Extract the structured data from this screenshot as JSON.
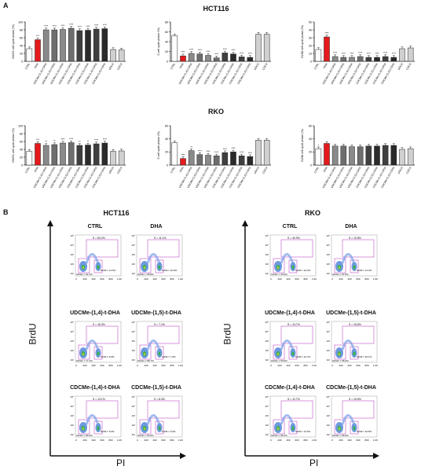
{
  "panels": {
    "a_letter": "A",
    "b_letter": "B",
    "cell_lines": [
      "HCT116",
      "RKO"
    ]
  },
  "colors": {
    "ctrl": "#ffffff",
    "dha": "#e41a1c",
    "udcme14": "#8a8a8a",
    "udcme15": "#6e6e6e",
    "cdcme14": "#3f3f3f",
    "cdcme15": "#2a2a2a",
    "udca": "#d0d0d0",
    "cdca": "#d0d0d0",
    "gate": "#c04fc8"
  },
  "categories": [
    "CTRL",
    "DHA",
    "UDCMe-(1,4)-t-DHA",
    "UDCMe-(1,5)-t-DHA",
    "UDCMe-(1,4)-t-DHA",
    "UDCMe-(1,5)-t-DHA",
    "CDCMe-(1,4)-t-DHA",
    "CDCMe-(1,5)-t-DHA",
    "CDCMe-(1,4)-t-DHA",
    "CDCMe-(1,5)-t-DHA",
    "UDCA",
    "CDCA"
  ],
  "chart_data": [
    {
      "type": "bar",
      "cell_line": "HCT116",
      "ylabel": "G0/G1 cell cycle phase (%)",
      "ylim": [
        0,
        100
      ],
      "yticks": [
        0,
        20,
        40,
        60,
        80,
        100
      ],
      "values": [
        32,
        55,
        80,
        80,
        81,
        84,
        78,
        79,
        82,
        83,
        30,
        29
      ],
      "sig": [
        "",
        "***",
        "****",
        "****",
        "****",
        "****",
        "****",
        "****",
        "****",
        "****",
        "",
        ""
      ]
    },
    {
      "type": "bar",
      "cell_line": "HCT116",
      "ylabel": "S cell cycle phase (%)",
      "ylim": [
        0,
        80
      ],
      "yticks": [
        0,
        20,
        40,
        60,
        80
      ],
      "values": [
        52,
        11,
        16,
        15,
        12,
        7,
        17,
        15,
        9,
        8,
        55,
        55
      ],
      "sig": [
        "",
        "****",
        "****",
        "****",
        "****",
        "****",
        "****",
        "****",
        "****",
        "****",
        "",
        ""
      ]
    },
    {
      "type": "bar",
      "cell_line": "HCT116",
      "ylabel": "G2/M cell cycle phase (%)",
      "ylim": [
        0,
        50
      ],
      "yticks": [
        0,
        10,
        20,
        30,
        40,
        50
      ],
      "values": [
        15,
        31,
        6,
        5,
        5,
        6,
        5,
        5,
        6,
        5,
        16,
        17
      ],
      "sig": [
        "",
        "****",
        "****",
        "****",
        "****",
        "****",
        "****",
        "****",
        "****",
        "****",
        "",
        ""
      ]
    },
    {
      "type": "bar",
      "cell_line": "RKO",
      "ylabel": "G0/G1 cell cycle phase (%)",
      "ylim": [
        0,
        100
      ],
      "yticks": [
        0,
        20,
        40,
        60,
        80,
        100
      ],
      "values": [
        35,
        55,
        50,
        52,
        56,
        57,
        50,
        51,
        54,
        56,
        35,
        36
      ],
      "sig": [
        "",
        "***",
        "**",
        "**",
        "****",
        "****",
        "**",
        "**",
        "****",
        "****",
        "",
        ""
      ]
    },
    {
      "type": "bar",
      "cell_line": "RKO",
      "ylabel": "S cell cycle phase (%)",
      "ylim": [
        0,
        60
      ],
      "yticks": [
        0,
        20,
        40,
        60
      ],
      "values": [
        34,
        10,
        22,
        16,
        15,
        14,
        19,
        20,
        14,
        13,
        38,
        38
      ],
      "sig": [
        "",
        "****",
        "**",
        "****",
        "****",
        "****",
        "****",
        "****",
        "****",
        "****",
        "",
        ""
      ]
    },
    {
      "type": "bar",
      "cell_line": "RKO",
      "ylabel": "G2/M cell cycle phase (%)",
      "ylim": [
        0,
        60
      ],
      "yticks": [
        0,
        20,
        40,
        60
      ],
      "values": [
        25,
        33,
        29,
        29,
        28,
        28,
        29,
        29,
        30,
        30,
        24,
        25
      ],
      "sig": [
        "*",
        "",
        "",
        "",
        "",
        "",
        "",
        "",
        "",
        "",
        "",
        ""
      ]
    }
  ],
  "facs": {
    "y_axis_label": "BrdU",
    "x_axis_label": "PI",
    "hct116": [
      {
        "title": "CTRL",
        "s": "S = 53.2%",
        "g0": "G0/G1 = 32.1%",
        "g2": "G2/M = 14.6%"
      },
      {
        "title": "DHA",
        "s": "S = 11.1%",
        "g0": "G0/G1 = 55.8%",
        "g2": "G2/M = 32.0%"
      },
      {
        "title": "UDCMe-(1,4)-t-DHA",
        "s": "S = 16.3%",
        "g0": "G0/G1 = 77.1%",
        "g2": "G2/M = 6.0%"
      },
      {
        "title": "UDCMe-(1,5)-t-DHA",
        "s": "S = 7.1%",
        "g0": "G0/G1 = 85.7%",
        "g2": "G2/M = 7.0%"
      },
      {
        "title": "CDCMe-(1,4)-t-DHA",
        "s": "S = 13.1%",
        "g0": "G0/G1 = 80.3%",
        "g2": "G2/M = 6.0%"
      },
      {
        "title": "CDCMe-(1,5)-t-DHA",
        "s": "S = 8.3%",
        "g0": "G0/G1 = 84.9%",
        "g2": "G2/M = 6.6%"
      }
    ],
    "rko": [
      {
        "title": "CTRL",
        "s": "S = 40.9%",
        "g0": "G0/G1 = 34.9%",
        "g2": "G2/M = 24.4%"
      },
      {
        "title": "DHA",
        "s": "S = 10.8%",
        "g0": "G0/G1 = 57.8%",
        "g2": "G2/M = 31.3%"
      },
      {
        "title": "UDCMe-(1,4)-t-DHA",
        "s": "S = 13.7%",
        "g0": "G0/G1 = 54.5%",
        "g2": "G2/M = 31.7%"
      },
      {
        "title": "UDCMe-(1,5)-t-DHA",
        "s": "S = 15.6%",
        "g0": "G0/G1 = 55.2%",
        "g2": "G2/M = 30.1%"
      },
      {
        "title": "CDCMe-(1,4)-t-DHA",
        "s": "S = 12.7%",
        "g0": "G0/G1 = 55.2%",
        "g2": "G2/M = 31.9%"
      },
      {
        "title": "CDCMe-(1,5)-t-DHA",
        "s": "S = 10.5%",
        "g0": "G0/G1 = 56.6%",
        "g2": "G2/M = 32.8%"
      }
    ],
    "yticks": [
      "10⁵",
      "10⁴",
      "10³",
      "10²",
      "10¹"
    ],
    "xticks": [
      "0",
      "200",
      "400",
      "600",
      "800",
      "1.0K"
    ]
  }
}
